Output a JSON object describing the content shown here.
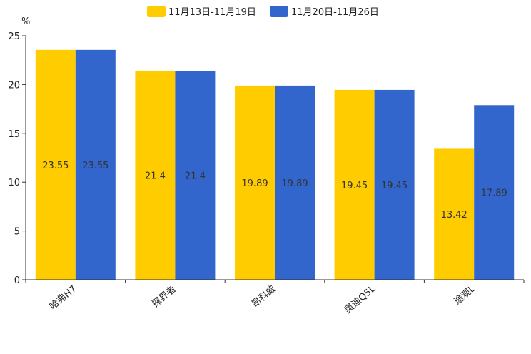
{
  "chart_data": {
    "type": "bar",
    "title": "",
    "unit_label": "%",
    "xlabel": "",
    "ylabel": "%",
    "ylim": [
      0,
      25
    ],
    "yticks": [
      0,
      5,
      10,
      15,
      20,
      25
    ],
    "grid": false,
    "legend_position": "top-center",
    "categories": [
      "哈弗H7",
      "探界者",
      "昂科威",
      "奥迪Q5L",
      "途观L"
    ],
    "series": [
      {
        "name": "11月13日-11月19日",
        "color": "#FFCC00",
        "values": [
          23.55,
          21.4,
          19.89,
          19.45,
          13.42
        ]
      },
      {
        "name": "11月20日-11月26日",
        "color": "#3366CC",
        "values": [
          23.55,
          21.4,
          19.89,
          19.45,
          17.89
        ]
      }
    ]
  }
}
